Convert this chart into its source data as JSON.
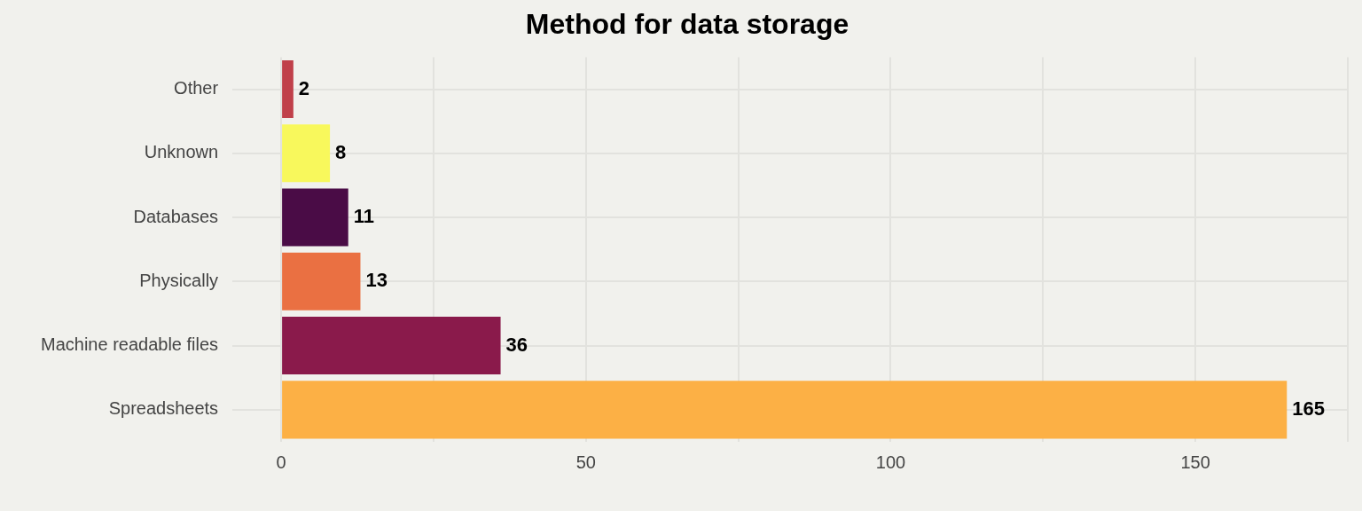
{
  "chart_data": {
    "type": "bar",
    "orientation": "horizontal",
    "title": "Method for data storage",
    "categories": [
      "Other",
      "Unknown",
      "Databases",
      "Physically",
      "Machine readable files",
      "Spreadsheets"
    ],
    "values": [
      2,
      8,
      11,
      13,
      36,
      165
    ],
    "colors": [
      "#c0404a",
      "#f8f85c",
      "#4a0c46",
      "#ea7042",
      "#8a1a4b",
      "#fcb045"
    ],
    "xlim": [
      -8,
      175
    ],
    "xticks": [
      0,
      {
        "value": 25,
        "label": null
      },
      50,
      {
        "value": 75,
        "label": null
      },
      100,
      {
        "value": 125,
        "label": null
      },
      150,
      {
        "value": 175,
        "label": null
      }
    ],
    "grid": true,
    "legend": false,
    "data_labels": true
  }
}
